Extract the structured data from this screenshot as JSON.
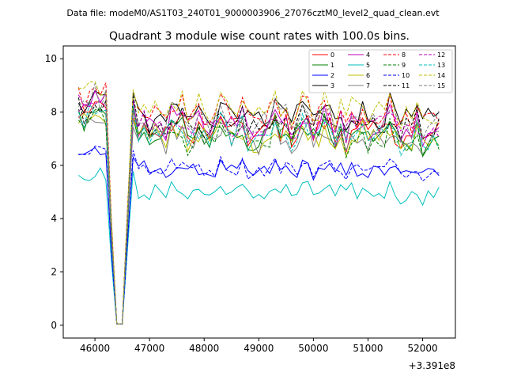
{
  "header": {
    "data_file": "Data file: modeM0/AS1T03_240T01_9000003906_27076cztM0_level2_quad_clean.evt"
  },
  "chart_data": {
    "type": "line",
    "title": "Quadrant 3 module wise count rates with 100.0s bins.",
    "xlabel": "",
    "ylabel": "",
    "x_offset_label": "+3.391e8",
    "xlim": [
      45420,
      52600
    ],
    "ylim": [
      -0.48,
      10.48
    ],
    "x_ticks": [
      46000,
      47000,
      48000,
      49000,
      50000,
      51000,
      52000
    ],
    "x_tick_labels": [
      "46000",
      "47000",
      "48000",
      "49000",
      "50000",
      "51000",
      "52000"
    ],
    "y_ticks": [
      0,
      2,
      4,
      6,
      8,
      10
    ],
    "y_tick_labels": [
      "0",
      "2",
      "4",
      "6",
      "8",
      "10"
    ],
    "grid": false,
    "legend_placement": "top-right",
    "x_start": 45700,
    "x_step": 100,
    "num_points": 67,
    "gap_start_index": 6,
    "gap_end_index": 9,
    "series": [
      {
        "name": "0",
        "color": "#ff0000",
        "dash": "solid",
        "base": 7.3
      },
      {
        "name": "1",
        "color": "#008000",
        "dash": "solid",
        "base": 7.2
      },
      {
        "name": "2",
        "color": "#0000ff",
        "dash": "solid",
        "base": 5.8
      },
      {
        "name": "3",
        "color": "#000000",
        "dash": "solid",
        "base": 7.9
      },
      {
        "name": "4",
        "color": "#bf00bf",
        "dash": "solid",
        "base": 7.6
      },
      {
        "name": "5",
        "color": "#00bfbf",
        "dash": "solid",
        "base": 5.0
      },
      {
        "name": "6",
        "color": "#bfbf00",
        "dash": "solid",
        "base": 7.1
      },
      {
        "name": "7",
        "color": "#808080",
        "dash": "solid",
        "base": 7.0
      },
      {
        "name": "8",
        "color": "#ff0000",
        "dash": "dashed",
        "base": 7.9
      },
      {
        "name": "9",
        "color": "#008000",
        "dash": "dashed",
        "base": 7.1
      },
      {
        "name": "10",
        "color": "#0000ff",
        "dash": "dashed",
        "base": 5.9
      },
      {
        "name": "11",
        "color": "#000000",
        "dash": "dashed",
        "base": 7.6
      },
      {
        "name": "12",
        "color": "#bf00bf",
        "dash": "dashed",
        "base": 7.5
      },
      {
        "name": "13",
        "color": "#00bfbf",
        "dash": "dashed",
        "base": 7.2
      },
      {
        "name": "14",
        "color": "#bfbf00",
        "dash": "dashed",
        "base": 8.1
      },
      {
        "name": "15",
        "color": "#808080",
        "dash": "dashed",
        "base": 7.7
      }
    ]
  }
}
